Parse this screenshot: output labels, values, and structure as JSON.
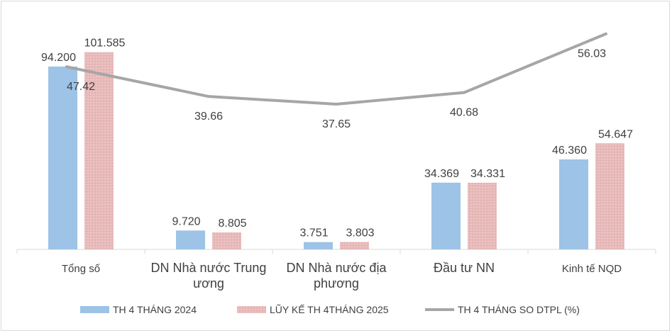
{
  "chart_data": {
    "type": "bar",
    "categories": [
      [
        "Tổng số"
      ],
      [
        "DN Nhà nước Trung",
        "ương"
      ],
      [
        "DN Nhà nước địa",
        "phương"
      ],
      [
        "Đầu tư NN"
      ],
      [
        "Kinh tế NQD"
      ]
    ],
    "series": [
      {
        "name": "TH 4 THÁNG 2024",
        "type": "bar",
        "color": "#9dc3e6",
        "values": [
          94.2,
          9.72,
          3.751,
          34.369,
          46.36
        ],
        "labels": [
          "94.200",
          "9.720",
          "3.751",
          "34.369",
          "46.360"
        ]
      },
      {
        "name": "LŨY KẾ TH 4THÁNG 2025",
        "type": "bar",
        "color": "#e8b9b9",
        "values": [
          101.585,
          8.805,
          3.803,
          34.331,
          54.647
        ],
        "labels": [
          "101.585",
          "8.805",
          "3.803",
          "34.331",
          "54.647"
        ]
      },
      {
        "name": "TH 4 THÁNG SO DTPL (%)",
        "type": "line",
        "color": "#a6a6a6",
        "values": [
          47.42,
          39.66,
          37.65,
          40.68,
          56.03
        ],
        "labels": [
          "47.42",
          "39.66",
          "37.65",
          "40.68",
          "56.03"
        ]
      }
    ],
    "legend_position": "bottom",
    "grid": false
  }
}
